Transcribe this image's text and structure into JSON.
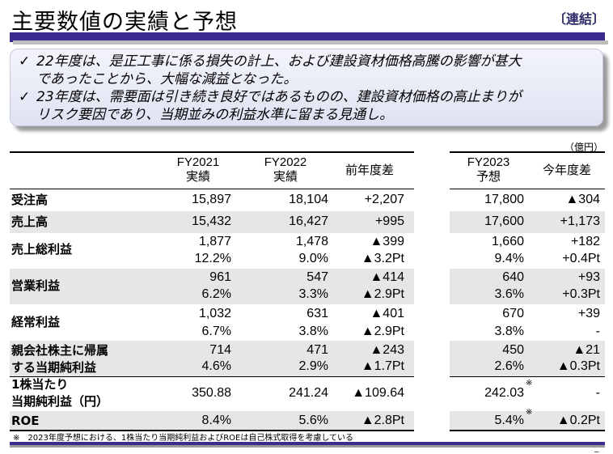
{
  "header": {
    "title": "主要数値の実績と予想",
    "tag": "〔連結〕"
  },
  "summary": [
    {
      "check": "✓",
      "line1": "22年度は、是正工事に係る損失の計上、および建設資材価格高騰の影響が甚大",
      "line2": "であったことから、大幅な減益となった。"
    },
    {
      "check": "✓",
      "line1": "23年度は、需要面は引き続き良好ではあるものの、建設資材価格の高止まりが",
      "line2": "リスク要因であり、当期並みの利益水準に留まる見通し。"
    }
  ],
  "unit": "（億円）",
  "columns": {
    "fy2021": [
      "FY2021",
      "実績"
    ],
    "fy2022": [
      "FY2022",
      "実績"
    ],
    "diff": "前年度差",
    "fy2023": [
      "FY2023",
      "予想"
    ],
    "diff2": "今年度差"
  },
  "rows": {
    "orders": {
      "label": "受注高",
      "fy2021": "15,897",
      "fy2022": "18,104",
      "diff": "+2,207",
      "fy2023": "17,800",
      "diff2": "▲304"
    },
    "sales": {
      "label": "売上高",
      "fy2021": "15,432",
      "fy2022": "16,427",
      "diff": "+995",
      "fy2023": "17,600",
      "diff2": "+1,173"
    },
    "gross": {
      "label": "売上総利益",
      "fy2021": "1,877",
      "fy2022": "1,478",
      "diff": "▲399",
      "fy2023": "1,660",
      "diff2": "+182",
      "fy2021b": "12.2%",
      "fy2022b": "9.0%",
      "diffb": "▲3.2Pt",
      "fy2023b": "9.4%",
      "diff2b": "+0.4Pt"
    },
    "operating": {
      "label": "営業利益",
      "fy2021": "961",
      "fy2022": "547",
      "diff": "▲414",
      "fy2023": "640",
      "diff2": "+93",
      "fy2021b": "6.2%",
      "fy2022b": "3.3%",
      "diffb": "▲2.9Pt",
      "fy2023b": "3.6%",
      "diff2b": "+0.3Pt"
    },
    "ordinary": {
      "label": "経常利益",
      "fy2021": "1,032",
      "fy2022": "631",
      "diff": "▲401",
      "fy2023": "670",
      "diff2": "+39",
      "fy2021b": "6.7%",
      "fy2022b": "3.8%",
      "diffb": "▲2.9Pt",
      "fy2023b": "3.8%",
      "diff2b": "-"
    },
    "net": {
      "label1": "親会社株主に帰属",
      "label2": "する当期純利益",
      "fy2021": "714",
      "fy2022": "471",
      "diff": "▲243",
      "fy2023": "450",
      "diff2": "▲21",
      "fy2021b": "4.6%",
      "fy2022b": "2.9%",
      "diffb": "▲1.7Pt",
      "fy2023b": "2.6%",
      "diff2b": "▲0.3Pt"
    },
    "eps": {
      "label1": "1株当たり",
      "label2": "当期純利益（円）",
      "fy2021": "350.88",
      "fy2022": "241.24",
      "diff": "▲109.64",
      "fy2023": "242.03",
      "mark": "※",
      "diff2": "-"
    },
    "roe": {
      "label": "ROE",
      "fy2021": "8.4%",
      "fy2022": "5.6%",
      "diff": "▲2.8Pt",
      "fy2023": "5.4%",
      "mark": "※",
      "diff2": "▲0.2Pt"
    }
  },
  "note": "※　2023年度予想における、1株当たり当期純利益およびROEは自己株式取得を考慮している",
  "corner": "–"
}
